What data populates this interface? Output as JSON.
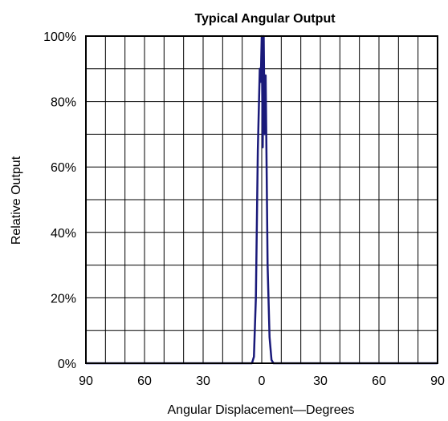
{
  "chart_data": {
    "type": "line",
    "title": "Typical Angular Output",
    "xlabel": "Angular Displacement—Degrees",
    "ylabel": "Relative Output",
    "xlim": [
      -90,
      90
    ],
    "ylim": [
      0,
      100
    ],
    "x_ticks": [
      -90,
      -60,
      -30,
      0,
      30,
      60,
      90
    ],
    "x_tick_labels": [
      "90",
      "60",
      "30",
      "0",
      "30",
      "60",
      "90"
    ],
    "y_ticks": [
      0,
      20,
      40,
      60,
      80,
      100
    ],
    "y_tick_labels": [
      "0%",
      "20%",
      "40%",
      "60%",
      "80%",
      "100%"
    ],
    "grid": true,
    "line_color": "#1a1a7a",
    "series": [
      {
        "x": [
          -90,
          -5,
          -4,
          -3,
          -2,
          -1,
          -0.5,
          0,
          0.5,
          1,
          1.5,
          2,
          2.5,
          3,
          4,
          5,
          6,
          90
        ],
        "y": [
          0,
          0,
          2,
          20,
          65,
          90,
          86,
          100,
          66,
          100,
          70,
          88,
          60,
          30,
          8,
          1,
          0,
          0
        ]
      }
    ]
  }
}
